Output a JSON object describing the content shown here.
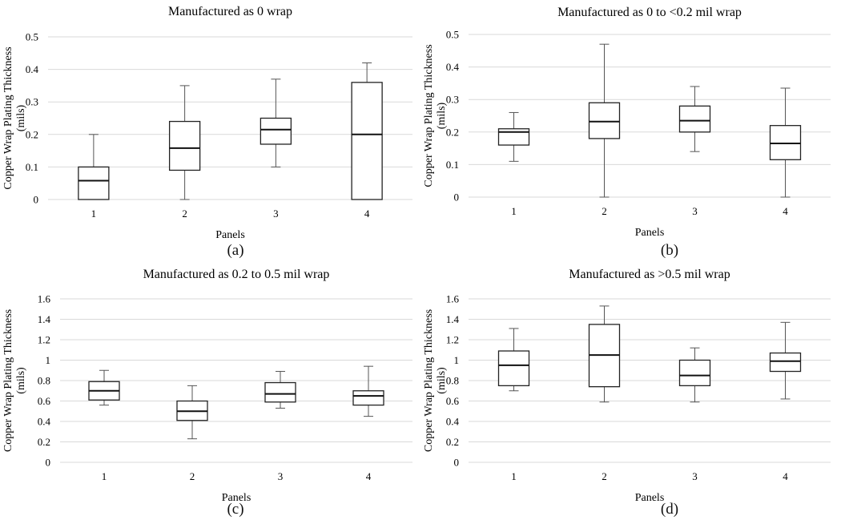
{
  "chart_data": [
    {
      "type": "box",
      "title": "Manufactured as 0 wrap",
      "xlabel": "Panels",
      "ylabel": "Copper Wrap Plating Thickness",
      "ylabel_unit": "(mils)",
      "caption": "(a)",
      "ylim": [
        0,
        0.5
      ],
      "yticks": [
        "0",
        "0.1",
        "0.2",
        "0.3",
        "0.4",
        "0.5"
      ],
      "ytick_values": [
        0,
        0.1,
        0.2,
        0.3,
        0.4,
        0.5
      ],
      "categories": [
        "1",
        "2",
        "3",
        "4"
      ],
      "boxes": [
        {
          "min": 0,
          "q1": 0,
          "median": 0.058,
          "q3": 0.1,
          "max": 0.2
        },
        {
          "min": 0,
          "q1": 0.09,
          "median": 0.158,
          "q3": 0.24,
          "max": 0.35
        },
        {
          "min": 0.1,
          "q1": 0.17,
          "median": 0.215,
          "q3": 0.25,
          "max": 0.37
        },
        {
          "min": 0,
          "q1": 0,
          "median": 0.2,
          "q3": 0.36,
          "max": 0.42
        }
      ]
    },
    {
      "type": "box",
      "title": "Manufactured as 0 to <0.2 mil wrap",
      "xlabel": "Panels",
      "ylabel": "Copper Wrap Plating Thickness",
      "ylabel_unit": "(mils)",
      "caption": "(b)",
      "ylim": [
        0,
        0.5
      ],
      "yticks": [
        "0",
        "0.1",
        "0.2",
        "0.3",
        "0.4",
        "0.5"
      ],
      "ytick_values": [
        0,
        0.1,
        0.2,
        0.3,
        0.4,
        0.5
      ],
      "categories": [
        "1",
        "2",
        "3",
        "4"
      ],
      "boxes": [
        {
          "min": 0.11,
          "q1": 0.16,
          "median": 0.2,
          "q3": 0.21,
          "max": 0.26
        },
        {
          "min": 0,
          "q1": 0.18,
          "median": 0.232,
          "q3": 0.29,
          "max": 0.47
        },
        {
          "min": 0.14,
          "q1": 0.2,
          "median": 0.235,
          "q3": 0.28,
          "max": 0.34
        },
        {
          "min": 0,
          "q1": 0.115,
          "median": 0.165,
          "q3": 0.22,
          "max": 0.335
        }
      ]
    },
    {
      "type": "box",
      "title": "Manufactured as 0.2 to 0.5 mil wrap",
      "xlabel": "Panels",
      "ylabel": "Copper Wrap Plating Thickness",
      "ylabel_unit": "(mils)",
      "caption": "(c)",
      "ylim": [
        0,
        1.6
      ],
      "yticks": [
        "0",
        "0.2",
        "0.4",
        "0.6",
        "0.8",
        "1",
        "1.2",
        "1.4",
        "1.6"
      ],
      "ytick_values": [
        0,
        0.2,
        0.4,
        0.6,
        0.8,
        1.0,
        1.2,
        1.4,
        1.6
      ],
      "categories": [
        "1",
        "2",
        "3",
        "4"
      ],
      "boxes": [
        {
          "min": 0.56,
          "q1": 0.61,
          "median": 0.7,
          "q3": 0.79,
          "max": 0.9
        },
        {
          "min": 0.23,
          "q1": 0.41,
          "median": 0.5,
          "q3": 0.6,
          "max": 0.75
        },
        {
          "min": 0.53,
          "q1": 0.59,
          "median": 0.67,
          "q3": 0.78,
          "max": 0.89
        },
        {
          "min": 0.45,
          "q1": 0.56,
          "median": 0.65,
          "q3": 0.7,
          "max": 0.94
        }
      ]
    },
    {
      "type": "box",
      "title": "Manufactured as >0.5 mil wrap",
      "xlabel": "Panels",
      "ylabel": "Copper Wrap Plating Thickness",
      "ylabel_unit": "(mils)",
      "caption": "(d)",
      "ylim": [
        0,
        1.6
      ],
      "yticks": [
        "0",
        "0.2",
        "0.4",
        "0.6",
        "0.8",
        "1",
        "1.2",
        "1.4",
        "1.6"
      ],
      "ytick_values": [
        0,
        0.2,
        0.4,
        0.6,
        0.8,
        1.0,
        1.2,
        1.4,
        1.6
      ],
      "categories": [
        "1",
        "2",
        "3",
        "4"
      ],
      "boxes": [
        {
          "min": 0.7,
          "q1": 0.75,
          "median": 0.95,
          "q3": 1.09,
          "max": 1.31
        },
        {
          "min": 0.59,
          "q1": 0.74,
          "median": 1.05,
          "q3": 1.35,
          "max": 1.53
        },
        {
          "min": 0.59,
          "q1": 0.75,
          "median": 0.85,
          "q3": 1.0,
          "max": 1.12
        },
        {
          "min": 0.62,
          "q1": 0.89,
          "median": 0.99,
          "q3": 1.07,
          "max": 1.37
        }
      ]
    }
  ]
}
